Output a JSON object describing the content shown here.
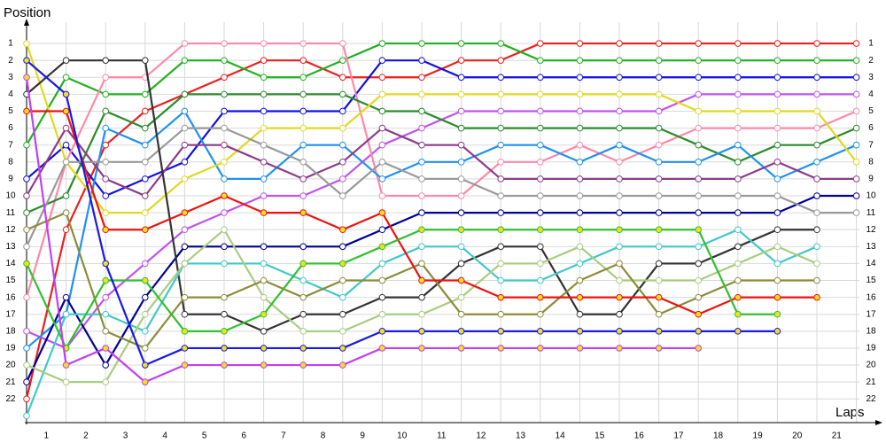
{
  "chart_data": {
    "type": "line",
    "y_axis_title": "Position",
    "x_axis_title": "Laps",
    "x": [
      0,
      1,
      2,
      3,
      4,
      5,
      6,
      7,
      8,
      9,
      10,
      11,
      12,
      13,
      14,
      15,
      16,
      17,
      18,
      19,
      20,
      21
    ],
    "xlim": [
      0,
      21.3
    ],
    "xticks": [
      {
        "value": 0.5,
        "label": "1"
      },
      {
        "value": 1.5,
        "label": "2"
      },
      {
        "value": 2.5,
        "label": "3"
      },
      {
        "value": 3.5,
        "label": "4"
      },
      {
        "value": 4.5,
        "label": "5"
      },
      {
        "value": 5.5,
        "label": "6"
      },
      {
        "value": 6.5,
        "label": "7"
      },
      {
        "value": 7.5,
        "label": "8"
      },
      {
        "value": 8.5,
        "label": "9"
      },
      {
        "value": 9.5,
        "label": "10"
      },
      {
        "value": 10.5,
        "label": "11"
      },
      {
        "value": 11.5,
        "label": "12"
      },
      {
        "value": 12.5,
        "label": "13"
      },
      {
        "value": 13.5,
        "label": "14"
      },
      {
        "value": 14.5,
        "label": "15"
      },
      {
        "value": 15.5,
        "label": "16"
      },
      {
        "value": 16.5,
        "label": "17"
      },
      {
        "value": 17.5,
        "label": "18"
      },
      {
        "value": 18.5,
        "label": "19"
      },
      {
        "value": 19.5,
        "label": "20"
      },
      {
        "value": 20.5,
        "label": "21"
      }
    ],
    "ylim": [
      23.4,
      -0.26
    ],
    "yticks": [
      1,
      2,
      3,
      4,
      5,
      6,
      7,
      8,
      9,
      10,
      11,
      12,
      13,
      14,
      15,
      16,
      17,
      18,
      19,
      20,
      21,
      22
    ],
    "grid": true,
    "series": [
      {
        "color": "#e82020",
        "marker_fill": "#ffffff",
        "values": [
          22,
          12,
          7,
          5,
          4,
          3,
          2,
          2,
          3,
          3,
          3,
          2,
          2,
          1,
          1,
          1,
          1,
          1,
          1,
          1,
          1,
          1
        ]
      },
      {
        "color": "#20b020",
        "marker_fill": "#ffffff",
        "values": [
          7,
          3,
          4,
          4,
          2,
          2,
          3,
          3,
          2,
          1,
          1,
          1,
          1,
          2,
          2,
          2,
          2,
          2,
          2,
          2,
          2,
          2
        ]
      },
      {
        "color": "#1010e0",
        "marker_fill": "#ffffff",
        "values": [
          9,
          7,
          10,
          9,
          8,
          5,
          5,
          5,
          5,
          2,
          2,
          3,
          3,
          3,
          3,
          3,
          3,
          3,
          3,
          3,
          3,
          3
        ]
      },
      {
        "color": "#c050f0",
        "marker_fill": "#ffffff",
        "values": [
          18,
          19,
          16,
          14,
          12,
          11,
          10,
          10,
          9,
          7,
          6,
          5,
          5,
          5,
          5,
          5,
          5,
          4,
          4,
          4,
          4,
          4
        ]
      },
      {
        "color": "#ff88a8",
        "marker_fill": "#ffffff",
        "values": [
          16,
          8,
          3,
          3,
          1,
          1,
          1,
          1,
          1,
          10,
          10,
          10,
          8,
          8,
          7,
          8,
          7,
          6,
          6,
          6,
          6,
          5
        ]
      },
      {
        "color": "#2a8a2a",
        "marker_fill": "#ffffff",
        "values": [
          11,
          10,
          5,
          6,
          4,
          4,
          4,
          4,
          4,
          5,
          5,
          6,
          6,
          6,
          6,
          6,
          6,
          7,
          8,
          7,
          7,
          6
        ]
      },
      {
        "color": "#2090f0",
        "marker_fill": "#ffffff",
        "values": [
          19,
          17,
          6,
          7,
          5,
          9,
          9,
          7,
          7,
          9,
          8,
          8,
          7,
          7,
          8,
          7,
          8,
          8,
          7,
          9,
          8,
          7
        ]
      },
      {
        "color": "#e0d820",
        "marker_fill": "#ffffff",
        "values": [
          1,
          8,
          11,
          11,
          9,
          8,
          6,
          6,
          6,
          4,
          4,
          4,
          4,
          4,
          4,
          4,
          4,
          5,
          5,
          5,
          5,
          8
        ]
      },
      {
        "color": "#8b3a8b",
        "marker_fill": "#ffffff",
        "values": [
          10,
          6,
          9,
          10,
          7,
          7,
          8,
          9,
          8,
          6,
          7,
          7,
          9,
          9,
          9,
          9,
          9,
          9,
          9,
          8,
          9,
          9
        ]
      },
      {
        "color": "#000090",
        "marker_fill": "#ffffff",
        "values": [
          21,
          16,
          20,
          16,
          13,
          13,
          13,
          13,
          13,
          12,
          11,
          11,
          11,
          11,
          11,
          11,
          11,
          11,
          11,
          11,
          10,
          10
        ]
      },
      {
        "color": "#999999",
        "marker_fill": "#ffffff",
        "values": [
          13,
          8,
          8,
          8,
          6,
          6,
          7,
          8,
          10,
          8,
          9,
          9,
          10,
          10,
          10,
          10,
          10,
          10,
          10,
          10,
          11,
          11
        ]
      },
      {
        "color": "#333333",
        "marker_fill": "#ffffff",
        "values": [
          4,
          2,
          2,
          2,
          17,
          17,
          18,
          17,
          17,
          16,
          16,
          14,
          13,
          13,
          17,
          17,
          14,
          14,
          13,
          12,
          12,
          null
        ]
      },
      {
        "color": "#40c8c8",
        "marker_fill": "#ffffff",
        "values": [
          23,
          17,
          17,
          18,
          14,
          14,
          14,
          15,
          16,
          14,
          13,
          13,
          15,
          15,
          14,
          13,
          13,
          13,
          12,
          14,
          13,
          null
        ]
      },
      {
        "color": "#a8cc80",
        "marker_fill": "#ffffff",
        "values": [
          20,
          21,
          21,
          17,
          14,
          12,
          16,
          18,
          18,
          17,
          17,
          16,
          14,
          14,
          13,
          15,
          15,
          15,
          14,
          13,
          14,
          null
        ]
      },
      {
        "color": "#8b8b3a",
        "marker_fill": "#ffffff",
        "values": [
          12,
          11,
          18,
          19,
          16,
          16,
          15,
          16,
          15,
          15,
          14,
          17,
          17,
          17,
          15,
          14,
          17,
          16,
          15,
          15,
          15,
          null
        ]
      },
      {
        "color": "#f01010",
        "marker_fill": "#f0e020",
        "values": [
          5,
          5,
          12,
          12,
          11,
          10,
          11,
          11,
          12,
          11,
          15,
          15,
          16,
          16,
          16,
          16,
          16,
          17,
          16,
          16,
          16,
          null
        ]
      },
      {
        "color": "#30c030",
        "marker_fill": "#f0e020",
        "values": [
          14,
          19,
          15,
          15,
          18,
          18,
          17,
          14,
          14,
          13,
          12,
          12,
          12,
          12,
          12,
          12,
          12,
          12,
          17,
          17,
          null,
          null
        ]
      },
      {
        "color": "#1818e8",
        "marker_fill": "#f0e020",
        "values": [
          2,
          4,
          14,
          20,
          19,
          19,
          19,
          19,
          19,
          18,
          18,
          18,
          18,
          18,
          18,
          18,
          18,
          18,
          18,
          18,
          null,
          null
        ]
      },
      {
        "color": "#c040f0",
        "marker_fill": "#f0e020",
        "values": [
          3,
          20,
          19,
          21,
          20,
          20,
          20,
          20,
          20,
          19,
          19,
          19,
          19,
          19,
          19,
          19,
          19,
          19,
          null,
          null,
          null,
          null
        ]
      }
    ]
  }
}
